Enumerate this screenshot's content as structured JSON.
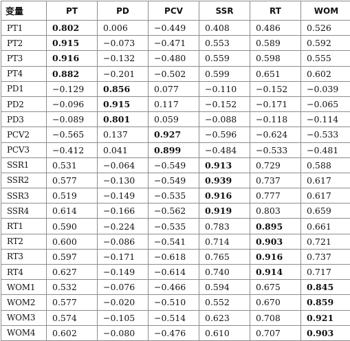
{
  "table": {
    "headers": [
      "变量",
      "PT",
      "PD",
      "PCV",
      "SSR",
      "RT",
      "WOM"
    ],
    "rows": [
      {
        "label": "PT1",
        "values": [
          "0.802",
          "0.006",
          "−0.449",
          "0.408",
          "0.486",
          "0.526"
        ],
        "bold": 0
      },
      {
        "label": "PT2",
        "values": [
          "0.915",
          "−0.073",
          "−0.471",
          "0.553",
          "0.589",
          "0.592"
        ],
        "bold": 0
      },
      {
        "label": "PT3",
        "values": [
          "0.916",
          "−0.132",
          "−0.480",
          "0.559",
          "0.598",
          "0.555"
        ],
        "bold": 0
      },
      {
        "label": "PT4",
        "values": [
          "0.882",
          "−0.201",
          "−0.502",
          "0.599",
          "0.651",
          "0.602"
        ],
        "bold": 0
      },
      {
        "label": "PD1",
        "values": [
          "−0.129",
          "0.856",
          "0.077",
          "−0.110",
          "−0.152",
          "−0.039"
        ],
        "bold": 1
      },
      {
        "label": "PD2",
        "values": [
          "−0.096",
          "0.915",
          "0.117",
          "−0.152",
          "−0.171",
          "−0.065"
        ],
        "bold": 1
      },
      {
        "label": "PD3",
        "values": [
          "−0.089",
          "0.801",
          "0.059",
          "−0.088",
          "−0.118",
          "−0.114"
        ],
        "bold": 1
      },
      {
        "label": "PCV2",
        "values": [
          "−0.565",
          "0.137",
          "0.927",
          "−0.596",
          "−0.624",
          "−0.533"
        ],
        "bold": 2
      },
      {
        "label": "PCV3",
        "values": [
          "−0.412",
          "0.041",
          "0.899",
          "−0.484",
          "−0.533",
          "−0.481"
        ],
        "bold": 2
      },
      {
        "label": "SSR1",
        "values": [
          "0.531",
          "−0.064",
          "−0.549",
          "0.913",
          "0.729",
          "0.588"
        ],
        "bold": 3
      },
      {
        "label": "SSR2",
        "values": [
          "0.577",
          "−0.130",
          "−0.549",
          "0.939",
          "0.737",
          "0.617"
        ],
        "bold": 3
      },
      {
        "label": "SSR3",
        "values": [
          "0.519",
          "−0.149",
          "−0.535",
          "0.916",
          "0.777",
          "0.617"
        ],
        "bold": 3
      },
      {
        "label": "SSR4",
        "values": [
          "0.614",
          "−0.166",
          "−0.562",
          "0.919",
          "0.803",
          "0.659"
        ],
        "bold": 3
      },
      {
        "label": "RT1",
        "values": [
          "0.590",
          "−0.224",
          "−0.535",
          "0.783",
          "0.895",
          "0.661"
        ],
        "bold": 4
      },
      {
        "label": "RT2",
        "values": [
          "0.600",
          "−0.086",
          "−0.541",
          "0.714",
          "0.903",
          "0.721"
        ],
        "bold": 4
      },
      {
        "label": "RT3",
        "values": [
          "0.597",
          "−0.171",
          "−0.618",
          "0.765",
          "0.916",
          "0.737"
        ],
        "bold": 4
      },
      {
        "label": "RT4",
        "values": [
          "0.627",
          "−0.149",
          "−0.614",
          "0.740",
          "0.914",
          "0.717"
        ],
        "bold": 4
      },
      {
        "label": "WOM1",
        "values": [
          "0.532",
          "−0.076",
          "−0.466",
          "0.594",
          "0.675",
          "0.845"
        ],
        "bold": 5
      },
      {
        "label": "WOM2",
        "values": [
          "0.577",
          "−0.020",
          "−0.510",
          "0.552",
          "0.670",
          "0.859"
        ],
        "bold": 5
      },
      {
        "label": "WOM3",
        "values": [
          "0.574",
          "−0.105",
          "−0.514",
          "0.623",
          "0.708",
          "0.921"
        ],
        "bold": 5
      },
      {
        "label": "WOM4",
        "values": [
          "0.602",
          "−0.080",
          "−0.476",
          "0.610",
          "0.707",
          "0.903"
        ],
        "bold": 5
      }
    ]
  }
}
